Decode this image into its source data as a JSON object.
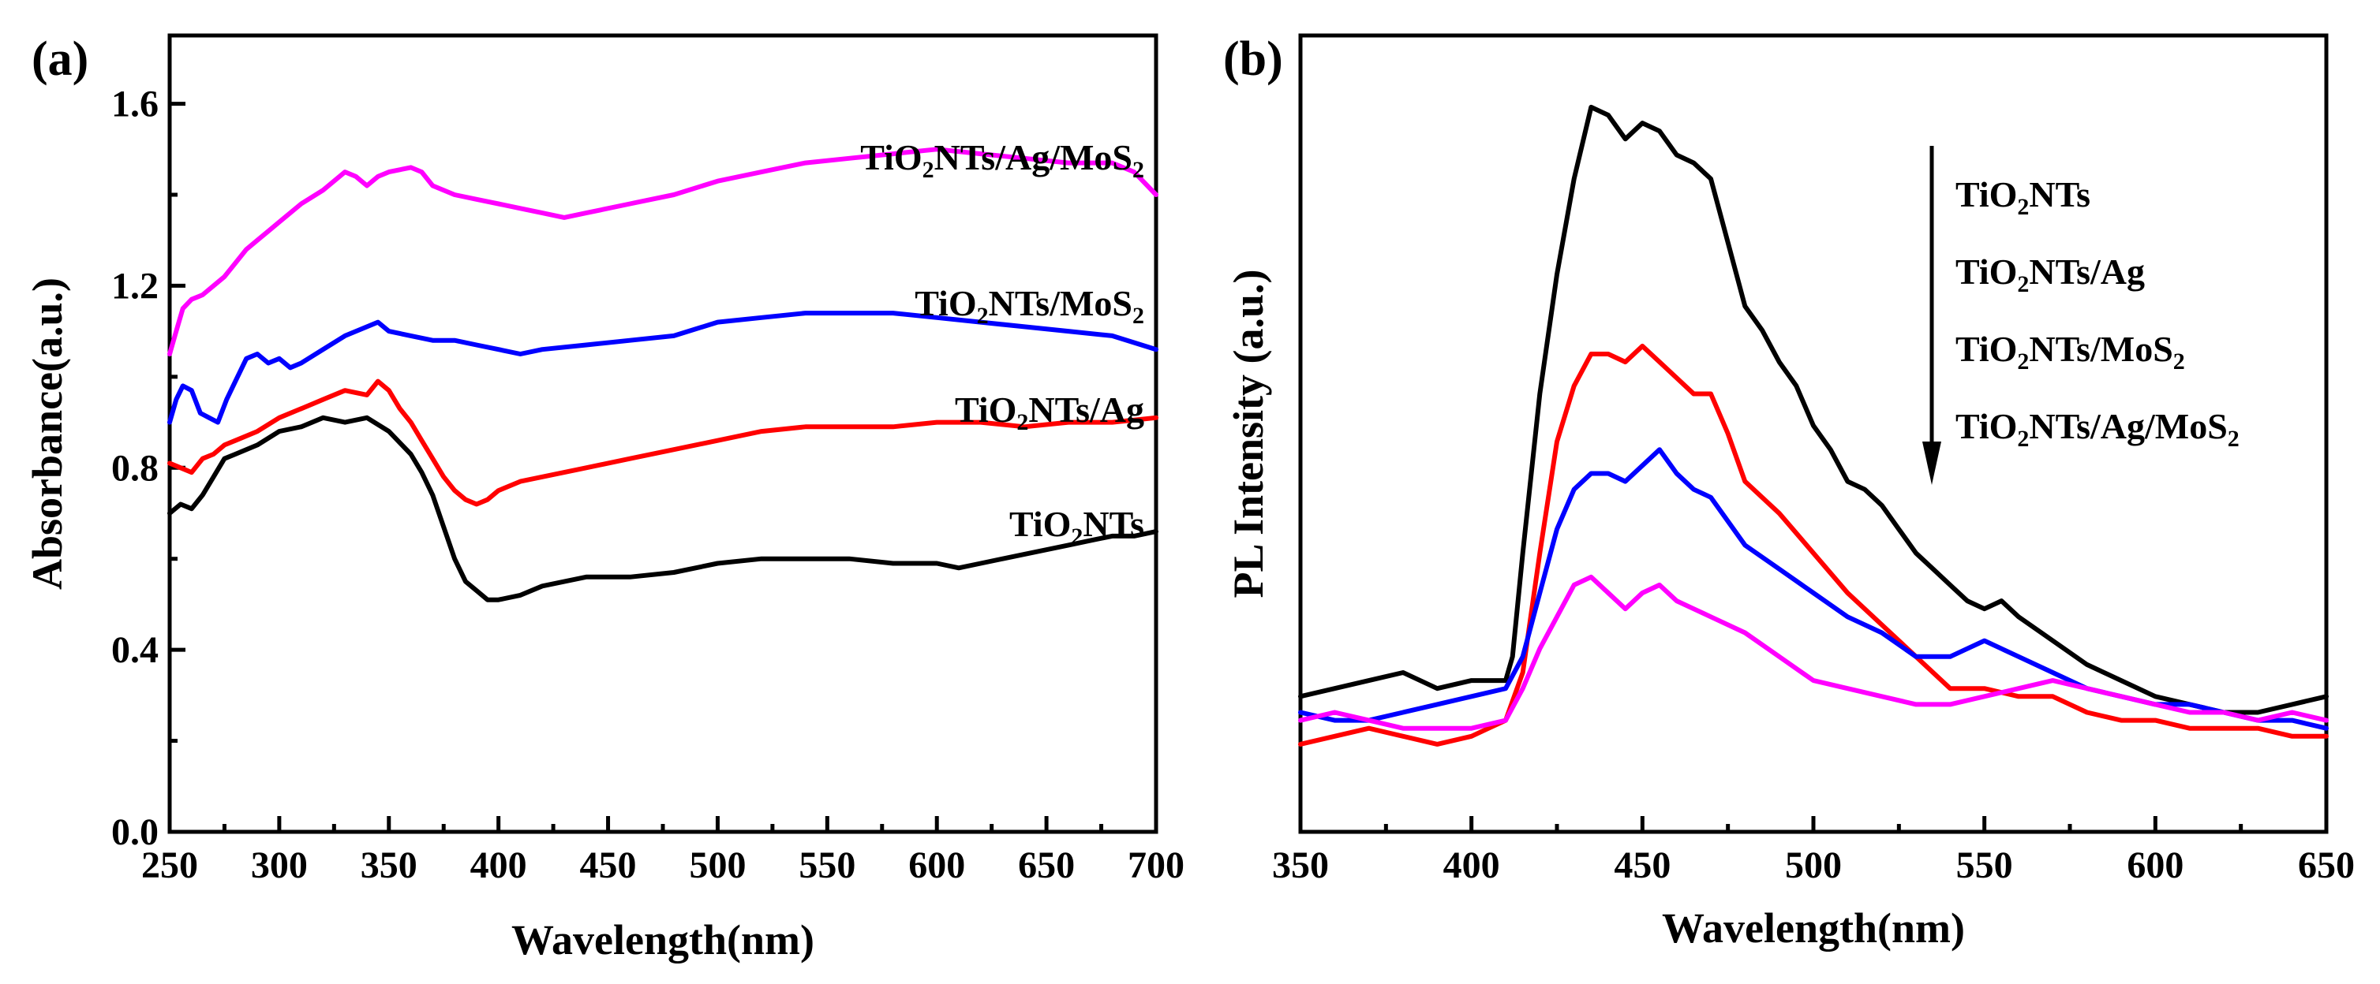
{
  "chart_data": [
    {
      "panel_label": "(a)",
      "type": "line",
      "xlabel": "Wavelength(nm)",
      "ylabel": "Absorbance(a.u.)",
      "xlim": [
        250,
        700
      ],
      "ylim": [
        0.0,
        1.75
      ],
      "xticks": [
        250,
        300,
        350,
        400,
        450,
        500,
        550,
        600,
        650,
        700
      ],
      "xtick_labels": [
        "250",
        "300",
        "350",
        "400",
        "450",
        "500",
        "550",
        "600",
        "650",
        "700"
      ],
      "yticks": [
        0.0,
        0.4,
        0.8,
        1.2,
        1.6
      ],
      "ytick_labels": [
        "0.0",
        "0.4",
        "0.8",
        "1.2",
        "1.6"
      ],
      "series": [
        {
          "name": "TiO2NTs",
          "color": "#000000",
          "label_parts": [
            "TiO",
            "2",
            "NTs"
          ],
          "x": [
            250,
            255,
            260,
            265,
            270,
            275,
            280,
            290,
            300,
            310,
            320,
            330,
            340,
            350,
            360,
            365,
            370,
            375,
            380,
            385,
            390,
            395,
            400,
            410,
            420,
            430,
            440,
            450,
            460,
            480,
            500,
            520,
            540,
            560,
            580,
            600,
            610,
            620,
            630,
            640,
            650,
            660,
            670,
            680,
            690,
            700
          ],
          "y": [
            0.7,
            0.72,
            0.71,
            0.74,
            0.78,
            0.82,
            0.83,
            0.85,
            0.88,
            0.89,
            0.91,
            0.9,
            0.91,
            0.88,
            0.83,
            0.79,
            0.74,
            0.67,
            0.6,
            0.55,
            0.53,
            0.51,
            0.51,
            0.52,
            0.54,
            0.55,
            0.56,
            0.56,
            0.56,
            0.57,
            0.59,
            0.6,
            0.6,
            0.6,
            0.59,
            0.59,
            0.58,
            0.59,
            0.6,
            0.61,
            0.62,
            0.63,
            0.64,
            0.65,
            0.65,
            0.66
          ]
        },
        {
          "name": "TiO2NTs/Ag",
          "color": "#ff0000",
          "label_parts": [
            "TiO",
            "2",
            "NTs/Ag"
          ],
          "x": [
            250,
            255,
            260,
            265,
            270,
            275,
            280,
            290,
            300,
            310,
            320,
            330,
            340,
            345,
            350,
            355,
            360,
            365,
            370,
            375,
            380,
            385,
            390,
            395,
            400,
            410,
            420,
            440,
            460,
            480,
            500,
            520,
            540,
            560,
            580,
            600,
            620,
            640,
            660,
            680,
            700
          ],
          "y": [
            0.81,
            0.8,
            0.79,
            0.82,
            0.83,
            0.85,
            0.86,
            0.88,
            0.91,
            0.93,
            0.95,
            0.97,
            0.96,
            0.99,
            0.97,
            0.93,
            0.9,
            0.86,
            0.82,
            0.78,
            0.75,
            0.73,
            0.72,
            0.73,
            0.75,
            0.77,
            0.78,
            0.8,
            0.82,
            0.84,
            0.86,
            0.88,
            0.89,
            0.89,
            0.89,
            0.9,
            0.9,
            0.89,
            0.9,
            0.9,
            0.91
          ]
        },
        {
          "name": "TiO2NTs/MoS2",
          "color": "#0000ff",
          "label_parts": [
            "TiO",
            "2",
            "NTs/MoS",
            "2"
          ],
          "x": [
            250,
            253,
            256,
            260,
            264,
            268,
            272,
            276,
            280,
            285,
            290,
            295,
            300,
            305,
            310,
            320,
            330,
            340,
            345,
            350,
            360,
            370,
            380,
            390,
            400,
            410,
            420,
            440,
            460,
            480,
            500,
            520,
            540,
            560,
            580,
            600,
            620,
            640,
            660,
            680,
            700
          ],
          "y": [
            0.9,
            0.95,
            0.98,
            0.97,
            0.92,
            0.91,
            0.9,
            0.95,
            0.99,
            1.04,
            1.05,
            1.03,
            1.04,
            1.02,
            1.03,
            1.06,
            1.09,
            1.11,
            1.12,
            1.1,
            1.09,
            1.08,
            1.08,
            1.07,
            1.06,
            1.05,
            1.06,
            1.07,
            1.08,
            1.09,
            1.12,
            1.13,
            1.14,
            1.14,
            1.14,
            1.13,
            1.12,
            1.11,
            1.1,
            1.09,
            1.06
          ]
        },
        {
          "name": "TiO2NTs/Ag/MoS2",
          "color": "#ff00ff",
          "label_parts": [
            "TiO",
            "2",
            "NTs/Ag/MoS",
            "2"
          ],
          "x": [
            250,
            253,
            256,
            260,
            265,
            270,
            275,
            280,
            285,
            290,
            295,
            300,
            310,
            320,
            330,
            335,
            340,
            345,
            350,
            360,
            365,
            370,
            380,
            390,
            400,
            410,
            420,
            430,
            440,
            460,
            480,
            500,
            520,
            540,
            560,
            580,
            600,
            620,
            640,
            660,
            680,
            690,
            700
          ],
          "y": [
            1.05,
            1.1,
            1.15,
            1.17,
            1.18,
            1.2,
            1.22,
            1.25,
            1.28,
            1.3,
            1.32,
            1.34,
            1.38,
            1.41,
            1.45,
            1.44,
            1.42,
            1.44,
            1.45,
            1.46,
            1.45,
            1.42,
            1.4,
            1.39,
            1.38,
            1.37,
            1.36,
            1.35,
            1.36,
            1.38,
            1.4,
            1.43,
            1.45,
            1.47,
            1.48,
            1.49,
            1.5,
            1.49,
            1.48,
            1.47,
            1.47,
            1.45,
            1.4
          ]
        }
      ]
    },
    {
      "panel_label": "(b)",
      "type": "line",
      "xlabel": "Wavelength(nm)",
      "ylabel": "PL Intensity (a.u.)",
      "xlim": [
        350,
        650
      ],
      "ylim": [
        0,
        100
      ],
      "xticks": [
        350,
        400,
        450,
        500,
        550,
        600,
        650
      ],
      "xtick_labels": [
        "350",
        "400",
        "450",
        "500",
        "550",
        "600",
        "650"
      ],
      "legend_order": [
        {
          "parts": [
            "TiO",
            "2",
            "NTs"
          ]
        },
        {
          "parts": [
            "TiO",
            "2",
            "NTs/Ag"
          ]
        },
        {
          "parts": [
            "TiO",
            "2",
            "NTs/MoS",
            "2"
          ]
        },
        {
          "parts": [
            "TiO",
            "2",
            "NTs/Ag/MoS",
            "2"
          ]
        }
      ],
      "series": [
        {
          "name": "TiO2NTs",
          "color": "#000000",
          "x": [
            350,
            360,
            370,
            380,
            390,
            400,
            405,
            410,
            412,
            415,
            420,
            425,
            430,
            435,
            440,
            445,
            450,
            455,
            460,
            465,
            470,
            475,
            480,
            485,
            490,
            495,
            500,
            505,
            510,
            515,
            520,
            525,
            530,
            535,
            540,
            545,
            550,
            555,
            560,
            570,
            580,
            590,
            600,
            610,
            620,
            630,
            640,
            650
          ],
          "y": [
            17,
            18,
            19,
            20,
            18,
            19,
            19,
            19,
            22,
            35,
            55,
            70,
            82,
            91,
            90,
            87,
            89,
            88,
            85,
            84,
            82,
            74,
            66,
            63,
            59,
            56,
            51,
            48,
            44,
            43,
            41,
            38,
            35,
            33,
            31,
            29,
            28,
            29,
            27,
            24,
            21,
            19,
            17,
            16,
            15,
            15,
            16,
            17
          ],
          "visible": true
        },
        {
          "name": "TiO2NTs/Ag",
          "color": "#ff0000",
          "x": [
            350,
            360,
            370,
            380,
            390,
            400,
            405,
            410,
            415,
            420,
            425,
            430,
            435,
            440,
            445,
            450,
            455,
            460,
            465,
            470,
            475,
            480,
            490,
            500,
            510,
            520,
            530,
            540,
            550,
            560,
            570,
            580,
            590,
            600,
            610,
            620,
            630,
            640,
            650
          ],
          "y": [
            11,
            12,
            13,
            12,
            11,
            12,
            13,
            14,
            20,
            35,
            49,
            56,
            60,
            60,
            59,
            61,
            59,
            57,
            55,
            55,
            50,
            44,
            40,
            35,
            30,
            26,
            22,
            18,
            18,
            17,
            17,
            15,
            14,
            14,
            13,
            13,
            13,
            12,
            12
          ],
          "visible": true
        },
        {
          "name": "TiO2NTs/MoS2",
          "color": "#0000ff",
          "x": [
            350,
            360,
            370,
            380,
            390,
            400,
            410,
            415,
            420,
            425,
            430,
            435,
            440,
            445,
            450,
            455,
            460,
            465,
            470,
            475,
            480,
            490,
            500,
            510,
            520,
            530,
            540,
            545,
            550,
            555,
            560,
            570,
            580,
            590,
            600,
            610,
            620,
            630,
            640,
            650
          ],
          "y": [
            15,
            14,
            14,
            15,
            16,
            17,
            18,
            22,
            30,
            38,
            43,
            45,
            45,
            44,
            46,
            48,
            45,
            43,
            42,
            39,
            36,
            33,
            30,
            27,
            25,
            22,
            22,
            23,
            24,
            23,
            22,
            20,
            18,
            17,
            16,
            16,
            15,
            14,
            14,
            13
          ],
          "visible": true
        },
        {
          "name": "TiO2NTs/Ag/MoS2",
          "color": "#ff00ff",
          "x": [
            350,
            360,
            370,
            380,
            390,
            400,
            410,
            415,
            420,
            425,
            430,
            435,
            440,
            445,
            450,
            455,
            460,
            465,
            470,
            480,
            490,
            500,
            510,
            520,
            530,
            540,
            550,
            560,
            570,
            580,
            590,
            600,
            610,
            620,
            630,
            640,
            650
          ],
          "y": [
            14,
            15,
            14,
            13,
            13,
            13,
            14,
            18,
            23,
            27,
            31,
            32,
            30,
            28,
            30,
            31,
            29,
            28,
            27,
            25,
            22,
            19,
            18,
            17,
            16,
            16,
            17,
            18,
            19,
            18,
            17,
            16,
            15,
            15,
            14,
            15,
            14
          ],
          "visible": true
        }
      ]
    }
  ]
}
